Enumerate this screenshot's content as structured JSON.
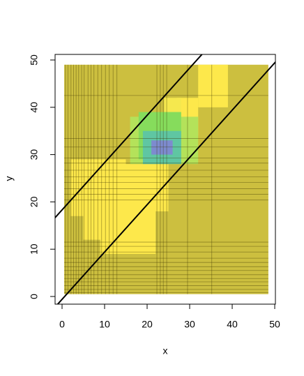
{
  "chart_data": {
    "type": "image",
    "xlabel": "x",
    "ylabel": "y",
    "xlim": [
      -1.64,
      50.16
    ],
    "ylim": [
      -1.62,
      51.18
    ],
    "xticks": [
      0,
      10,
      20,
      30,
      40,
      50
    ],
    "yticks": [
      0,
      10,
      20,
      30,
      40,
      50
    ],
    "regions": [
      {
        "x": [
          0.5,
          48.5
        ],
        "y": [
          0.5,
          49
        ],
        "color": "#ccbf3f"
      },
      {
        "x": [
          2,
          15
        ],
        "y": [
          17,
          29
        ],
        "color": "#fde84b"
      },
      {
        "x": [
          5,
          18
        ],
        "y": [
          12,
          24
        ],
        "color": "#fde84b"
      },
      {
        "x": [
          9,
          22
        ],
        "y": [
          9,
          19
        ],
        "color": "#fde84b"
      },
      {
        "x": [
          13,
          25
        ],
        "y": [
          18,
          28
        ],
        "color": "#fde84b"
      },
      {
        "x": [
          32,
          39
        ],
        "y": [
          40,
          49
        ],
        "color": "#fde84b"
      },
      {
        "x": [
          27,
          32
        ],
        "y": [
          34,
          42
        ],
        "color": "#fde84b"
      },
      {
        "x": [
          24,
          28
        ],
        "y": [
          38,
          42
        ],
        "color": "#f5e84e"
      },
      {
        "x": [
          16,
          32
        ],
        "y": [
          28,
          38
        ],
        "color": "#b4e25a"
      },
      {
        "x": [
          18,
          28
        ],
        "y": [
          29,
          39
        ],
        "color": "#86dc5c"
      },
      {
        "x": [
          19,
          28
        ],
        "y": [
          28,
          35
        ],
        "color": "#5fc6a2"
      },
      {
        "x": [
          21,
          26
        ],
        "y": [
          30,
          33
        ],
        "color": "#7d8bcf"
      }
    ],
    "vlines": [
      0.8,
      1.4,
      2.1,
      2.7,
      3.3,
      3.9,
      4.6,
      5.2,
      6.1,
      6.8,
      7.5,
      8.4,
      9.3,
      10.2,
      11.1,
      12,
      12.9,
      22.3,
      23.1,
      23.8,
      24.6,
      29.5,
      35.2
    ],
    "hlines": [
      0.8,
      1.5,
      2.3,
      3.1,
      3.8,
      4.6,
      5.5,
      6.3,
      7.2,
      8.1,
      9.4,
      10.6,
      11.5,
      20.4,
      21.6,
      22.8,
      24.1,
      25.3,
      26.7,
      28.2,
      29.3,
      31.6,
      33.4,
      42.5
    ],
    "lines": [
      {
        "intercept": 18.3,
        "slope": 1
      },
      {
        "intercept": -0.6,
        "slope": 1
      }
    ]
  }
}
